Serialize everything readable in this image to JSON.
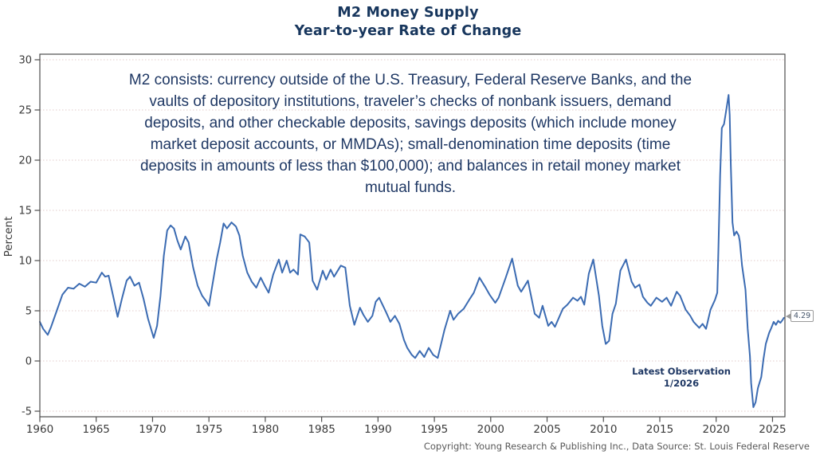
{
  "title": {
    "line1": "M2 Money Supply",
    "line2": "Year-to-year Rate of Change"
  },
  "annotation": {
    "lines": [
      "M2 consists: currency outside of the U.S. Treasury, Federal Reserve Banks, and the",
      "vaults of depository institutions, traveler’s checks of nonbank issuers, demand",
      "deposits, and other checkable deposits, savings deposits (which include money",
      "market deposit accounts, or MMDAs); small-denomination time deposits (time",
      "deposits in amounts of less than $100,000); and balances in retail money market",
      "mutual funds."
    ]
  },
  "latest_observation": {
    "label": "Latest Observation",
    "date": "1/2026",
    "value_label": "4.29"
  },
  "footer": {
    "copyright": "Copyright: Young Research & Publishing Inc., Data Source: St. Louis Federal Reserve"
  },
  "colors": {
    "line": "#3b6bb2",
    "title_text": "#17365d",
    "annotation_text": "#1f3864",
    "gridline": "#e2cbca",
    "axis": "#4d4d4d",
    "tick_label": "#3a3a3a",
    "copyright_text": "#595959"
  },
  "chart_data": {
    "type": "line",
    "title": "M2 Money Supply — Year-to-year Rate of Change",
    "xlabel": "",
    "ylabel": "Percent",
    "xlim": [
      1960,
      2026.1
    ],
    "ylim": [
      -5,
      30
    ],
    "xticks": [
      1960,
      1965,
      1970,
      1975,
      1980,
      1985,
      1990,
      1995,
      2000,
      2005,
      2010,
      2015,
      2020,
      2025
    ],
    "yticks": [
      -5,
      0,
      5,
      10,
      15,
      20,
      25,
      30
    ],
    "grid": "horizontal-dotted",
    "legend": "none",
    "latest": {
      "date": "1/2026",
      "value": 4.29
    },
    "series": [
      {
        "name": "M2 year-to-year rate of change (%)",
        "points": [
          [
            1960.0,
            3.9
          ],
          [
            1960.3,
            3.2
          ],
          [
            1960.7,
            2.6
          ],
          [
            1961.0,
            3.4
          ],
          [
            1961.5,
            5.0
          ],
          [
            1962.0,
            6.6
          ],
          [
            1962.5,
            7.3
          ],
          [
            1963.0,
            7.2
          ],
          [
            1963.5,
            7.7
          ],
          [
            1964.0,
            7.4
          ],
          [
            1964.5,
            7.9
          ],
          [
            1965.0,
            7.8
          ],
          [
            1965.5,
            8.8
          ],
          [
            1965.8,
            8.4
          ],
          [
            1966.1,
            8.5
          ],
          [
            1966.5,
            6.5
          ],
          [
            1966.9,
            4.4
          ],
          [
            1967.3,
            6.3
          ],
          [
            1967.7,
            8.0
          ],
          [
            1968.0,
            8.4
          ],
          [
            1968.4,
            7.5
          ],
          [
            1968.8,
            7.8
          ],
          [
            1969.2,
            6.2
          ],
          [
            1969.6,
            4.2
          ],
          [
            1970.1,
            2.3
          ],
          [
            1970.4,
            3.5
          ],
          [
            1970.7,
            6.5
          ],
          [
            1971.0,
            10.5
          ],
          [
            1971.3,
            13.0
          ],
          [
            1971.6,
            13.5
          ],
          [
            1971.9,
            13.2
          ],
          [
            1972.2,
            12.0
          ],
          [
            1972.5,
            11.1
          ],
          [
            1972.9,
            12.4
          ],
          [
            1973.2,
            11.8
          ],
          [
            1973.6,
            9.3
          ],
          [
            1974.0,
            7.5
          ],
          [
            1974.4,
            6.5
          ],
          [
            1974.8,
            5.9
          ],
          [
            1975.0,
            5.5
          ],
          [
            1975.3,
            7.5
          ],
          [
            1975.7,
            10.2
          ],
          [
            1976.0,
            11.8
          ],
          [
            1976.3,
            13.7
          ],
          [
            1976.6,
            13.2
          ],
          [
            1977.0,
            13.8
          ],
          [
            1977.4,
            13.4
          ],
          [
            1977.7,
            12.5
          ],
          [
            1978.0,
            10.5
          ],
          [
            1978.4,
            8.8
          ],
          [
            1978.8,
            7.9
          ],
          [
            1979.2,
            7.3
          ],
          [
            1979.6,
            8.3
          ],
          [
            1980.0,
            7.4
          ],
          [
            1980.3,
            6.8
          ],
          [
            1980.7,
            8.6
          ],
          [
            1981.0,
            9.5
          ],
          [
            1981.2,
            10.1
          ],
          [
            1981.5,
            8.8
          ],
          [
            1981.9,
            10.0
          ],
          [
            1982.2,
            8.8
          ],
          [
            1982.5,
            9.1
          ],
          [
            1982.9,
            8.6
          ],
          [
            1983.1,
            12.6
          ],
          [
            1983.5,
            12.4
          ],
          [
            1983.9,
            11.8
          ],
          [
            1984.2,
            8.0
          ],
          [
            1984.6,
            7.1
          ],
          [
            1985.1,
            9.0
          ],
          [
            1985.4,
            8.1
          ],
          [
            1985.8,
            9.1
          ],
          [
            1986.1,
            8.4
          ],
          [
            1986.7,
            9.5
          ],
          [
            1987.1,
            9.3
          ],
          [
            1987.5,
            5.5
          ],
          [
            1987.9,
            3.6
          ],
          [
            1988.4,
            5.3
          ],
          [
            1988.7,
            4.6
          ],
          [
            1989.1,
            3.9
          ],
          [
            1989.5,
            4.5
          ],
          [
            1989.8,
            5.9
          ],
          [
            1990.1,
            6.3
          ],
          [
            1990.7,
            4.9
          ],
          [
            1991.1,
            3.9
          ],
          [
            1991.5,
            4.5
          ],
          [
            1991.9,
            3.7
          ],
          [
            1992.3,
            2.1
          ],
          [
            1992.6,
            1.3
          ],
          [
            1993.0,
            0.6
          ],
          [
            1993.3,
            0.3
          ],
          [
            1993.7,
            1.0
          ],
          [
            1994.1,
            0.4
          ],
          [
            1994.5,
            1.3
          ],
          [
            1994.9,
            0.6
          ],
          [
            1995.3,
            0.3
          ],
          [
            1995.9,
            3.1
          ],
          [
            1996.4,
            5.0
          ],
          [
            1996.7,
            4.1
          ],
          [
            1997.1,
            4.7
          ],
          [
            1997.6,
            5.2
          ],
          [
            1998.1,
            6.1
          ],
          [
            1998.5,
            6.8
          ],
          [
            1999.0,
            8.3
          ],
          [
            1999.5,
            7.4
          ],
          [
            1999.9,
            6.6
          ],
          [
            2000.4,
            5.8
          ],
          [
            2000.7,
            6.3
          ],
          [
            2001.3,
            8.2
          ],
          [
            2001.9,
            10.2
          ],
          [
            2002.4,
            7.5
          ],
          [
            2002.7,
            6.9
          ],
          [
            2003.3,
            8.0
          ],
          [
            2003.9,
            4.7
          ],
          [
            2004.3,
            4.3
          ],
          [
            2004.6,
            5.5
          ],
          [
            2005.1,
            3.5
          ],
          [
            2005.4,
            3.9
          ],
          [
            2005.7,
            3.4
          ],
          [
            2006.4,
            5.2
          ],
          [
            2006.8,
            5.6
          ],
          [
            2007.3,
            6.3
          ],
          [
            2007.7,
            6.0
          ],
          [
            2008.0,
            6.4
          ],
          [
            2008.3,
            5.6
          ],
          [
            2008.7,
            8.7
          ],
          [
            2009.1,
            10.1
          ],
          [
            2009.6,
            6.5
          ],
          [
            2009.9,
            3.5
          ],
          [
            2010.2,
            1.7
          ],
          [
            2010.5,
            2.0
          ],
          [
            2010.8,
            4.7
          ],
          [
            2011.1,
            5.7
          ],
          [
            2011.5,
            9.0
          ],
          [
            2012.0,
            10.1
          ],
          [
            2012.5,
            7.9
          ],
          [
            2012.8,
            7.3
          ],
          [
            2013.2,
            7.6
          ],
          [
            2013.5,
            6.4
          ],
          [
            2013.9,
            5.8
          ],
          [
            2014.2,
            5.5
          ],
          [
            2014.7,
            6.3
          ],
          [
            2015.2,
            5.9
          ],
          [
            2015.6,
            6.3
          ],
          [
            2016.0,
            5.5
          ],
          [
            2016.5,
            6.9
          ],
          [
            2016.8,
            6.5
          ],
          [
            2017.3,
            5.1
          ],
          [
            2017.7,
            4.5
          ],
          [
            2018.0,
            3.9
          ],
          [
            2018.5,
            3.3
          ],
          [
            2018.8,
            3.7
          ],
          [
            2019.1,
            3.2
          ],
          [
            2019.5,
            5.1
          ],
          [
            2019.9,
            6.1
          ],
          [
            2020.1,
            6.8
          ],
          [
            2020.2,
            11.0
          ],
          [
            2020.35,
            18.5
          ],
          [
            2020.5,
            23.2
          ],
          [
            2020.7,
            23.6
          ],
          [
            2020.9,
            25.0
          ],
          [
            2021.1,
            26.5
          ],
          [
            2021.2,
            24.5
          ],
          [
            2021.3,
            19.5
          ],
          [
            2021.45,
            13.8
          ],
          [
            2021.6,
            12.5
          ],
          [
            2021.8,
            12.9
          ],
          [
            2022.0,
            12.5
          ],
          [
            2022.1,
            11.9
          ],
          [
            2022.3,
            9.5
          ],
          [
            2022.6,
            7.1
          ],
          [
            2022.8,
            3.2
          ],
          [
            2023.0,
            0.5
          ],
          [
            2023.1,
            -2.2
          ],
          [
            2023.3,
            -4.6
          ],
          [
            2023.5,
            -4.1
          ],
          [
            2023.7,
            -2.7
          ],
          [
            2024.0,
            -1.6
          ],
          [
            2024.2,
            0.2
          ],
          [
            2024.4,
            1.7
          ],
          [
            2024.7,
            2.8
          ],
          [
            2024.9,
            3.3
          ],
          [
            2025.1,
            3.9
          ],
          [
            2025.3,
            3.6
          ],
          [
            2025.5,
            4.0
          ],
          [
            2025.7,
            3.8
          ],
          [
            2025.9,
            4.1
          ],
          [
            2026.0,
            4.29
          ]
        ]
      }
    ]
  }
}
